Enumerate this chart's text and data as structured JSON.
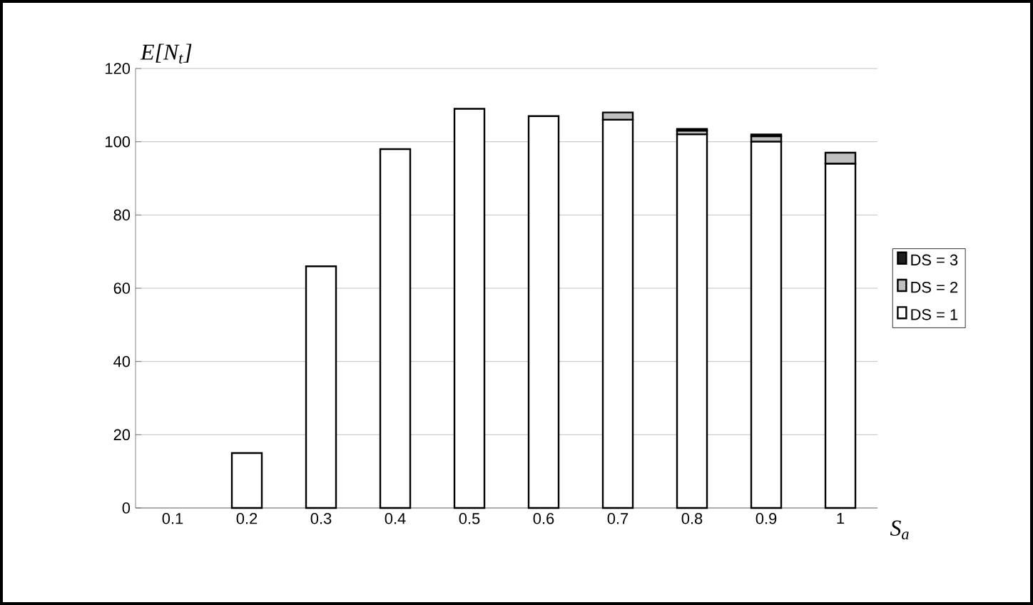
{
  "chart_data": {
    "type": "bar",
    "stacked": true,
    "xlabel": "S$_{a}$",
    "ylabel": "E[N$_{t}$]",
    "categories": [
      "0.1",
      "0.2",
      "0.3",
      "0.4",
      "0.5",
      "0.6",
      "0.7",
      "0.8",
      "0.9",
      "1"
    ],
    "series": [
      {
        "name": "DS = 1",
        "color": "#ffffff",
        "values": [
          0,
          15,
          66,
          98,
          109,
          107,
          106,
          102,
          100,
          94
        ]
      },
      {
        "name": "DS = 2",
        "color": "#c0c0c0",
        "values": [
          0,
          0,
          0,
          0,
          0,
          0,
          2,
          1,
          1.5,
          3
        ]
      },
      {
        "name": "DS = 3",
        "color": "#202020",
        "values": [
          0,
          0,
          0,
          0,
          0,
          0,
          0,
          0.5,
          0.5,
          0
        ]
      }
    ],
    "ylim": [
      0,
      120
    ],
    "yticks": [
      0,
      20,
      40,
      60,
      80,
      100,
      120
    ],
    "grid": "y",
    "legend": "right"
  }
}
